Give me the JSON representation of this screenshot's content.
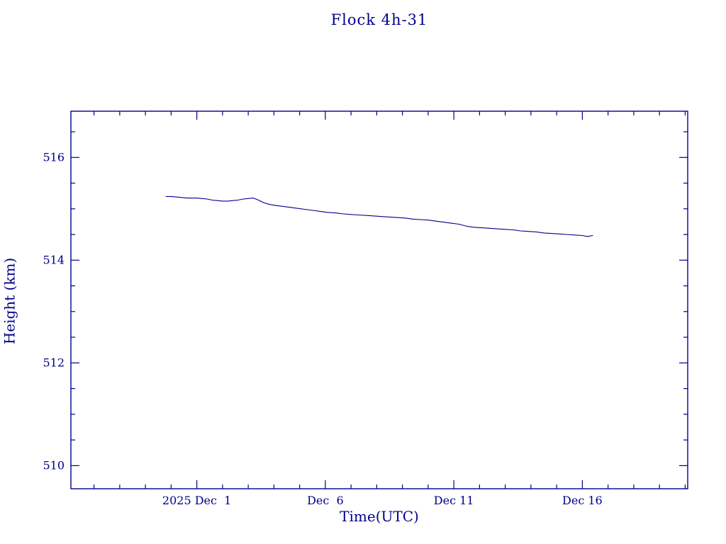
{
  "page": {
    "background": "#ffffff"
  },
  "chart_data": {
    "type": "line",
    "title": "Flock 4h-31",
    "xlabel": "Time(UTC)",
    "ylabel": "Height (km)",
    "color": "#00008b",
    "grid": false,
    "legend": "none",
    "x_axis": {
      "unit": "days since 2025 Dec 1 00:00 UTC",
      "min": -4.9,
      "max": 19.1,
      "minor_tick_interval": 1,
      "major_ticks": [
        {
          "day": 0,
          "label": "2025 Dec  1"
        },
        {
          "day": 5,
          "label": "Dec  6"
        },
        {
          "day": 10,
          "label": "Dec 11"
        },
        {
          "day": 15,
          "label": "Dec 16"
        }
      ]
    },
    "y_axis": {
      "unit": "km",
      "min": 509.55,
      "max": 516.9,
      "minor_tick_interval": 0.5,
      "major_ticks": [
        {
          "value": 510,
          "label": "510"
        },
        {
          "value": 512,
          "label": "512"
        },
        {
          "value": 514,
          "label": "514"
        },
        {
          "value": 516,
          "label": "516"
        }
      ]
    },
    "series": [
      {
        "name": "height",
        "points": [
          [
            -1.2,
            515.24
          ],
          [
            -1.0,
            515.24
          ],
          [
            -0.8,
            515.23
          ],
          [
            -0.6,
            515.22
          ],
          [
            -0.4,
            515.21
          ],
          [
            -0.2,
            515.21
          ],
          [
            0.0,
            515.21
          ],
          [
            0.2,
            515.2
          ],
          [
            0.4,
            515.19
          ],
          [
            0.6,
            515.17
          ],
          [
            0.8,
            515.16
          ],
          [
            1.0,
            515.15
          ],
          [
            1.2,
            515.15
          ],
          [
            1.4,
            515.16
          ],
          [
            1.6,
            515.17
          ],
          [
            1.8,
            515.19
          ],
          [
            2.0,
            515.2
          ],
          [
            2.2,
            515.21
          ],
          [
            2.4,
            515.17
          ],
          [
            2.6,
            515.12
          ],
          [
            2.8,
            515.09
          ],
          [
            3.0,
            515.07
          ],
          [
            3.3,
            515.05
          ],
          [
            3.6,
            515.03
          ],
          [
            3.9,
            515.01
          ],
          [
            4.2,
            514.99
          ],
          [
            4.5,
            514.97
          ],
          [
            4.8,
            514.95
          ],
          [
            5.1,
            514.93
          ],
          [
            5.4,
            514.92
          ],
          [
            5.7,
            514.9
          ],
          [
            6.0,
            514.89
          ],
          [
            6.3,
            514.88
          ],
          [
            6.6,
            514.87
          ],
          [
            6.9,
            514.86
          ],
          [
            7.2,
            514.85
          ],
          [
            7.5,
            514.84
          ],
          [
            7.8,
            514.83
          ],
          [
            8.1,
            514.82
          ],
          [
            8.4,
            514.8
          ],
          [
            8.7,
            514.79
          ],
          [
            9.0,
            514.78
          ],
          [
            9.3,
            514.76
          ],
          [
            9.6,
            514.74
          ],
          [
            9.9,
            514.72
          ],
          [
            10.2,
            514.7
          ],
          [
            10.5,
            514.66
          ],
          [
            10.8,
            514.64
          ],
          [
            11.1,
            514.63
          ],
          [
            11.4,
            514.62
          ],
          [
            11.7,
            514.61
          ],
          [
            12.0,
            514.6
          ],
          [
            12.3,
            514.59
          ],
          [
            12.6,
            514.57
          ],
          [
            12.9,
            514.56
          ],
          [
            13.2,
            514.55
          ],
          [
            13.5,
            514.53
          ],
          [
            13.8,
            514.52
          ],
          [
            14.1,
            514.51
          ],
          [
            14.4,
            514.5
          ],
          [
            14.7,
            514.49
          ],
          [
            15.0,
            514.48
          ],
          [
            15.2,
            514.46
          ],
          [
            15.4,
            514.48
          ]
        ]
      }
    ]
  }
}
